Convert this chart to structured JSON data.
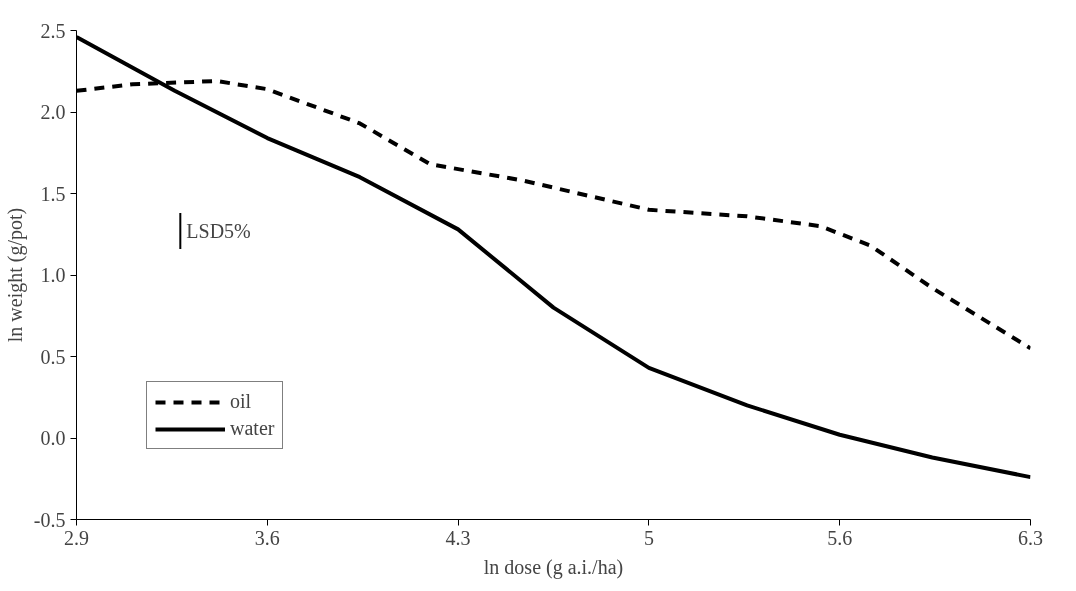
{
  "chart_data": {
    "type": "line",
    "xlabel": "ln dose (g a.i./ha)",
    "ylabel": "ln weight (g/pot)",
    "xlim": [
      2.9,
      6.3
    ],
    "ylim": [
      -0.5,
      2.5
    ],
    "xticks": [
      2.9,
      {
        "value": 3.58,
        "label": "3.6"
      },
      {
        "value": 4.26,
        "label": "4.3"
      },
      {
        "value": 4.94,
        "label": "5"
      },
      {
        "value": 5.62,
        "label": "5.6"
      },
      6.3
    ],
    "yticks": [
      {
        "value": -0.5,
        "label": "-0.5"
      },
      {
        "value": 0,
        "label": "0.0"
      },
      {
        "value": 0.5,
        "label": "0.5"
      },
      {
        "value": 1,
        "label": "1.0"
      },
      {
        "value": 1.5,
        "label": "1.5"
      },
      {
        "value": 2,
        "label": "2.0"
      },
      {
        "value": 2.5,
        "label": "2.5"
      }
    ],
    "grid": false,
    "legend": "bottom left",
    "marker": "none",
    "annotations": [
      {
        "text": "LSD5%",
        "x": 3.27,
        "y": 1.27
      }
    ],
    "series": [
      {
        "name": "oil",
        "color": "#000000",
        "line_style": "dashed",
        "x": [
          2.9,
          3.1,
          3.4,
          3.58,
          3.91,
          4.16,
          4.49,
          4.94,
          5.29,
          5.55,
          5.73,
          5.95,
          6.3
        ],
        "values": [
          2.13,
          2.17,
          2.19,
          2.14,
          1.93,
          1.68,
          1.58,
          1.4,
          1.36,
          1.3,
          1.18,
          0.92,
          0.55
        ]
      },
      {
        "name": "water",
        "color": "#000000",
        "line_style": "solid",
        "x": [
          2.9,
          3.25,
          3.58,
          3.91,
          4.26,
          4.6,
          4.94,
          5.29,
          5.62,
          5.95,
          6.3
        ],
        "values": [
          2.46,
          2.13,
          1.84,
          1.6,
          1.28,
          0.8,
          0.43,
          0.2,
          0.02,
          -0.12,
          -0.24
        ]
      },
      {
        "color": "#000000",
        "line_style": "solid",
        "x": [
          3.27,
          3.27
        ],
        "values": [
          1.16,
          1.38
        ]
      }
    ]
  }
}
